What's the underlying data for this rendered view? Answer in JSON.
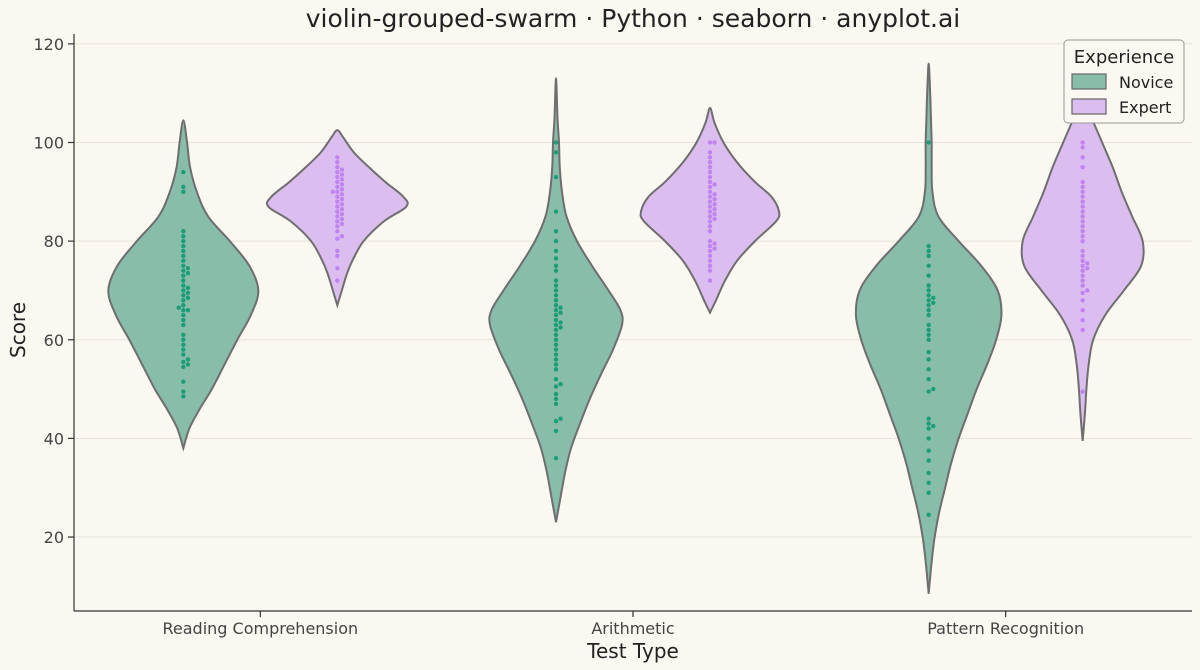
{
  "chart_data": {
    "type": "violin",
    "title": "violin-grouped-swarm · Python · seaborn · anyplot.ai",
    "xlabel": "Test Type",
    "ylabel": "Score",
    "ylim": [
      5,
      122
    ],
    "yticks": [
      20,
      40,
      60,
      80,
      100,
      120
    ],
    "grid": "horizontal",
    "categories": [
      "Reading Comprehension",
      "Arithmetic",
      "Pattern Recognition"
    ],
    "legend": {
      "title": "Experience",
      "placement": "top-right"
    },
    "series": [
      {
        "name": "Novice",
        "fill": "#87BDA9",
        "point_color": "#1B9E77",
        "groups": [
          {
            "category": "Reading Comprehension",
            "violin": [
              [
                38,
                0
              ],
              [
                42,
                0.08
              ],
              [
                46,
                0.22
              ],
              [
                50,
                0.38
              ],
              [
                55,
                0.55
              ],
              [
                60,
                0.72
              ],
              [
                65,
                0.9
              ],
              [
                70,
                1.0
              ],
              [
                75,
                0.88
              ],
              [
                80,
                0.62
              ],
              [
                85,
                0.33
              ],
              [
                90,
                0.18
              ],
              [
                95,
                0.09
              ],
              [
                100,
                0.05
              ],
              [
                104.5,
                0
              ]
            ],
            "points": [
              48.5,
              49.5,
              51.5,
              54.5,
              55,
              55.5,
              56,
              57,
              58,
              59,
              60,
              61,
              63,
              64,
              65,
              66,
              66,
              66.5,
              67,
              68,
              68.5,
              69,
              69.5,
              70,
              70.5,
              71,
              72,
              73,
              73.5,
              74,
              74.5,
              75,
              76,
              77,
              78,
              79,
              80,
              81,
              82,
              90,
              91,
              94
            ]
          },
          {
            "category": "Arithmetic",
            "violin": [
              [
                23,
                0
              ],
              [
                28,
                0.06
              ],
              [
                33,
                0.12
              ],
              [
                38,
                0.2
              ],
              [
                43,
                0.32
              ],
              [
                48,
                0.45
              ],
              [
                53,
                0.6
              ],
              [
                58,
                0.76
              ],
              [
                63,
                0.88
              ],
              [
                66,
                0.86
              ],
              [
                70,
                0.7
              ],
              [
                75,
                0.48
              ],
              [
                80,
                0.28
              ],
              [
                85,
                0.14
              ],
              [
                90,
                0.08
              ],
              [
                95,
                0.05
              ],
              [
                100,
                0.04
              ],
              [
                105,
                0.02
              ],
              [
                113,
                0
              ]
            ],
            "points": [
              36,
              41.5,
              43.5,
              44,
              47,
              48,
              49,
              50.5,
              51,
              52,
              54,
              55,
              56,
              57,
              58,
              59,
              60,
              61,
              62,
              62.5,
              63,
              63.5,
              64,
              65,
              65.5,
              66,
              66.5,
              67,
              68,
              69,
              70,
              71,
              72,
              74,
              75,
              76.5,
              78,
              80,
              82,
              86,
              93,
              98,
              100
            ]
          },
          {
            "category": "Pattern Recognition",
            "violin": [
              [
                8.5,
                0
              ],
              [
                15,
                0.04
              ],
              [
                20,
                0.08
              ],
              [
                25,
                0.14
              ],
              [
                30,
                0.22
              ],
              [
                35,
                0.3
              ],
              [
                40,
                0.4
              ],
              [
                45,
                0.52
              ],
              [
                50,
                0.64
              ],
              [
                55,
                0.78
              ],
              [
                60,
                0.9
              ],
              [
                65,
                0.97
              ],
              [
                70,
                0.92
              ],
              [
                75,
                0.7
              ],
              [
                80,
                0.4
              ],
              [
                85,
                0.13
              ],
              [
                90,
                0.05
              ],
              [
                95,
                0.04
              ],
              [
                100,
                0.04
              ],
              [
                105,
                0.03
              ],
              [
                110,
                0.02
              ],
              [
                116,
                0
              ]
            ],
            "points": [
              24.5,
              29,
              31,
              33,
              35.5,
              37.5,
              40,
              42,
              42.5,
              43,
              44,
              49.5,
              50,
              52,
              54,
              56,
              57.5,
              60,
              61,
              62,
              63,
              65,
              66,
              67,
              67.5,
              68,
              68.5,
              69,
              70,
              71,
              73,
              75,
              77,
              78,
              79,
              100
            ]
          }
        ]
      },
      {
        "name": "Expert",
        "fill": "#DBBDEF",
        "point_color": "#C083F0",
        "groups": [
          {
            "category": "Reading Comprehension",
            "violin": [
              [
                67,
                0
              ],
              [
                70,
                0.06
              ],
              [
                73,
                0.12
              ],
              [
                76,
                0.2
              ],
              [
                80,
                0.35
              ],
              [
                84,
                0.62
              ],
              [
                87,
                0.92
              ],
              [
                89,
                0.88
              ],
              [
                92,
                0.64
              ],
              [
                95,
                0.42
              ],
              [
                98,
                0.22
              ],
              [
                101,
                0.08
              ],
              [
                102.5,
                0
              ]
            ],
            "points": [
              72,
              74.5,
              77,
              78,
              80.5,
              81,
              82,
              83,
              83.5,
              84,
              84.5,
              85,
              85.5,
              86,
              86.5,
              87,
              87.5,
              88,
              88.5,
              89,
              89.5,
              90,
              90,
              90.5,
              91,
              91.5,
              92,
              92.5,
              93,
              93.5,
              94,
              94.5,
              95,
              96,
              97
            ]
          },
          {
            "category": "Arithmetic",
            "violin": [
              [
                65.5,
                0
              ],
              [
                68,
                0.08
              ],
              [
                72,
                0.2
              ],
              [
                76,
                0.36
              ],
              [
                80,
                0.6
              ],
              [
                84,
                0.88
              ],
              [
                86,
                0.92
              ],
              [
                89,
                0.82
              ],
              [
                92,
                0.6
              ],
              [
                96,
                0.36
              ],
              [
                100,
                0.18
              ],
              [
                104,
                0.06
              ],
              [
                107,
                0
              ]
            ],
            "points": [
              72,
              74,
              75,
              76,
              77,
              78,
              78.5,
              79,
              79.5,
              80,
              82,
              83,
              84,
              84.5,
              85,
              85.5,
              86,
              86.5,
              87,
              87.5,
              88,
              88.5,
              89,
              89.5,
              90,
              91,
              91.5,
              92,
              93,
              94,
              95,
              96,
              97,
              98,
              100,
              100
            ]
          },
          {
            "category": "Pattern Recognition",
            "violin": [
              [
                39.5,
                0
              ],
              [
                45,
                0.03
              ],
              [
                50,
                0.05
              ],
              [
                55,
                0.08
              ],
              [
                60,
                0.14
              ],
              [
                65,
                0.3
              ],
              [
                70,
                0.55
              ],
              [
                75,
                0.78
              ],
              [
                80,
                0.8
              ],
              [
                85,
                0.66
              ],
              [
                90,
                0.52
              ],
              [
                95,
                0.4
              ],
              [
                100,
                0.26
              ],
              [
                105,
                0.12
              ],
              [
                110,
                0
              ]
            ],
            "points": [
              49.5,
              62,
              64,
              66,
              68,
              69.5,
              70,
              71,
              72,
              73,
              74,
              74.5,
              75,
              75.5,
              76,
              77,
              78,
              80,
              81,
              82,
              83,
              84,
              85,
              86,
              87,
              88,
              89,
              90,
              91,
              92,
              95,
              97,
              99,
              100
            ]
          }
        ]
      }
    ]
  }
}
